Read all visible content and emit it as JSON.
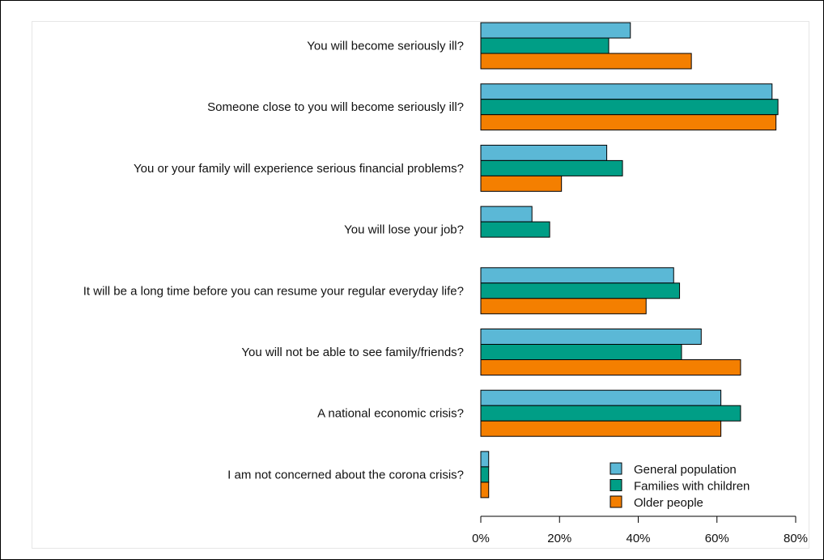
{
  "chart_data": {
    "type": "bar",
    "orientation": "horizontal",
    "categories": [
      "You will become seriously ill?",
      "Someone close to you will become seriously ill?",
      "You or your family will experience serious financial problems?",
      "You will lose your job?",
      "It will be a long time before you can resume your regular everyday life?",
      "You will not be able to see family/friends?",
      "A national economic crisis?",
      "I am not concerned about the corona crisis?"
    ],
    "series": [
      {
        "name": "General population",
        "color": "#5bb8d6",
        "values": [
          38,
          74,
          32,
          13,
          49,
          56,
          61,
          2
        ]
      },
      {
        "name": "Families with children",
        "color": "#009e86",
        "values": [
          32.5,
          75.5,
          36,
          17.5,
          50.5,
          51,
          66,
          2
        ]
      },
      {
        "name": "Older people",
        "color": "#f47f00",
        "values": [
          53.5,
          75,
          20.5,
          0,
          42,
          66,
          61,
          2
        ]
      }
    ],
    "xlim": [
      0,
      80
    ],
    "x_ticks": [
      "0%",
      "20%",
      "40%",
      "60%",
      "80%"
    ],
    "x_tick_values": [
      0,
      20,
      40,
      60,
      80
    ],
    "xlabel": "",
    "ylabel": "",
    "title": "",
    "grid": false,
    "legend_position": "bottom-right"
  }
}
